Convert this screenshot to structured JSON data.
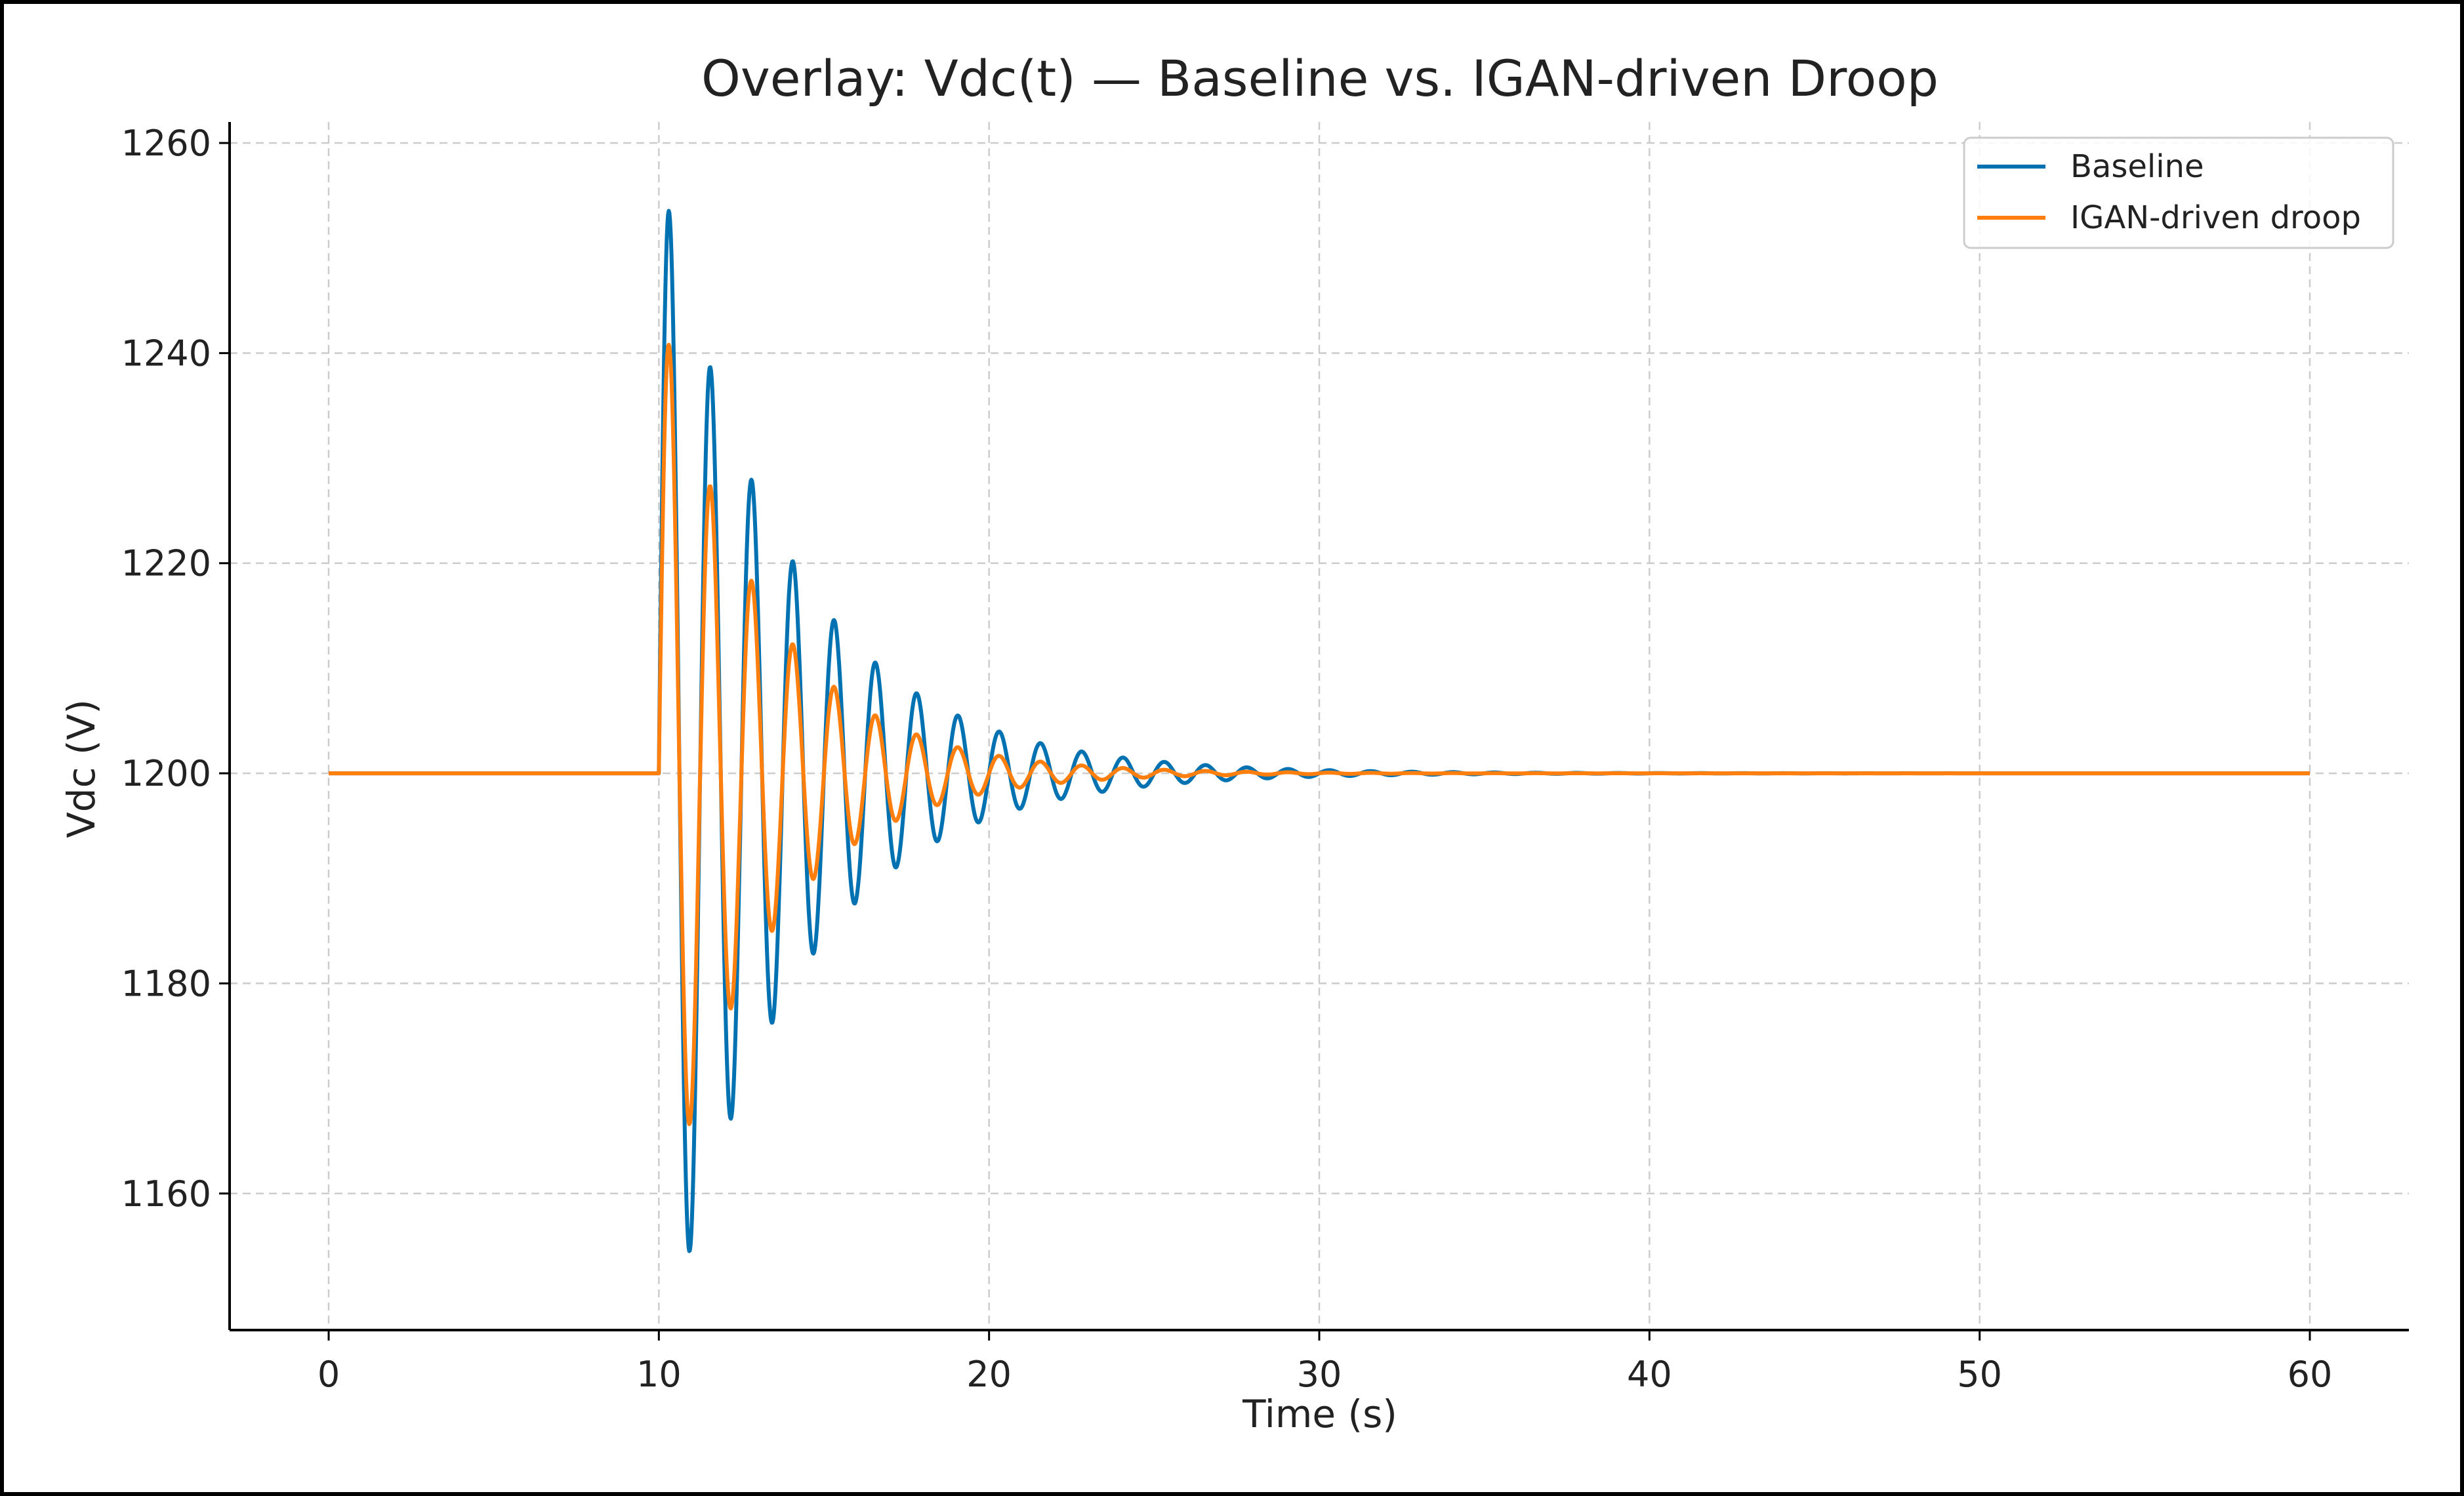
{
  "chart_data": {
    "type": "line",
    "title": "Overlay: Vdc(t) — Baseline vs. IGAN-driven Droop",
    "xlabel": "Time (s)",
    "ylabel": "Vdc (V)",
    "xlim": [
      -3,
      63
    ],
    "ylim": [
      1147,
      1262
    ],
    "xticks": [
      0,
      10,
      20,
      30,
      40,
      50,
      60
    ],
    "yticks": [
      1160,
      1180,
      1200,
      1220,
      1240,
      1260
    ],
    "grid": true,
    "legend_position": "top-right",
    "series": [
      {
        "name": "Baseline",
        "color": "#0072b2",
        "model": {
          "steady": 1200,
          "step_time": 10,
          "amplitude": 58,
          "decay": 0.26,
          "period": 1.25
        },
        "x": [
          0,
          10,
          10.3,
          10.9,
          11.55,
          12.15,
          12.8,
          13.4,
          14.05,
          14.65,
          15.3,
          15.9,
          16.55,
          17.15,
          17.8,
          18.4,
          19.05,
          19.65,
          20.3,
          21.55,
          22.8,
          24.05,
          25.3,
          27.8,
          30,
          35,
          40,
          50,
          60
        ],
        "y": [
          1200,
          1200,
          1255,
          1152,
          1241,
          1165,
          1230,
          1175,
          1222,
          1181,
          1216,
          1186,
          1211,
          1190,
          1208,
          1193,
          1206,
          1195,
          1204.5,
          1203.5,
          1202.5,
          1201.5,
          1201,
          1200.5,
          1200,
          1200,
          1200,
          1200,
          1200
        ]
      },
      {
        "name": "IGAN-driven droop",
        "color": "#ff7f0e",
        "model": {
          "steady": 1200,
          "step_time": 10,
          "amplitude": 45,
          "decay": 0.32,
          "period": 1.25
        },
        "x": [
          0,
          10,
          10.3,
          10.95,
          11.55,
          12.2,
          12.8,
          13.45,
          14.05,
          14.7,
          15.3,
          15.95,
          16.55,
          17.2,
          17.8,
          18.45,
          19.05,
          20.3,
          21.55,
          25,
          30,
          40,
          50,
          60
        ],
        "y": [
          1200,
          1200,
          1243,
          1165,
          1228,
          1177,
          1218,
          1185,
          1211,
          1190,
          1207,
          1194,
          1205,
          1196,
          1203,
          1198,
          1202,
          1201,
          1200.5,
          1200,
          1200,
          1200,
          1200,
          1200
        ]
      }
    ]
  }
}
